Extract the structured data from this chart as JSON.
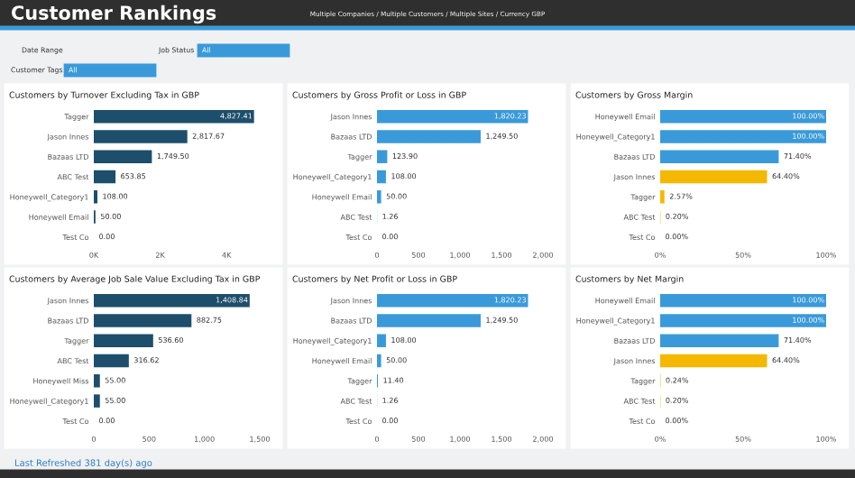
{
  "chart_data": [
    {
      "type": "other",
      "title": "Customer Rankings",
      "subtitle": "Multiple Companies / Multiple Customers / Multiple Sites / Currency GBP",
      "annotations": [
        "Date Range",
        "Job Status",
        "All",
        "Customer Tags",
        "All",
        "Last Refreshed 381 day(s) ago"
      ]
    },
    {
      "type": "bar",
      "orientation": "horizontal",
      "title": "Customers by Turnover Excluding Tax in GBP",
      "categories": [
        "Tagger",
        "Jason Innes",
        "Bazaas LTD",
        "ABC Test",
        "Honeywell_Category1",
        "Honeywell Email",
        "Test Co"
      ],
      "values": [
        4827.41,
        2817.67,
        1749.5,
        653.85,
        108.0,
        50.0,
        0.0
      ],
      "value_labels": [
        "4,827.41",
        "2,817.67",
        "1,749.50",
        "653.85",
        "108.00",
        "50.00",
        "0.00"
      ],
      "color": "#1d4e6b",
      "xlim": [
        0,
        5000
      ],
      "xticks": [
        {
          "value": 0,
          "label": "0K"
        },
        {
          "value": 2000,
          "label": "2K"
        },
        {
          "value": 4000,
          "label": "4K"
        }
      ]
    },
    {
      "type": "bar",
      "orientation": "horizontal",
      "title": "Customers by Gross Profit or Loss in GBP",
      "categories": [
        "Jason Innes",
        "Bazaas LTD",
        "Tagger",
        "Honeywell_Category1",
        "Honeywell Email",
        "ABC Test",
        "Test Co"
      ],
      "values": [
        1820.23,
        1249.5,
        123.9,
        108.0,
        50.0,
        1.26,
        0.0
      ],
      "value_labels": [
        "1,820.23",
        "1,249.50",
        "123.90",
        "108.00",
        "50.00",
        "1.26",
        "0.00"
      ],
      "color": "#3a9ad9",
      "xlim": [
        0,
        2000
      ],
      "xticks": [
        0,
        500,
        {
          "value": 1000,
          "label": "1,000"
        },
        {
          "value": 1500,
          "label": "1,500"
        },
        {
          "value": 2000,
          "label": "2,000"
        }
      ]
    },
    {
      "type": "bar",
      "orientation": "horizontal",
      "title": "Customers by Gross Margin",
      "categories": [
        "Honeywell Email",
        "Honeywell_Category1",
        "Bazaas LTD",
        "Jason Innes",
        "Tagger",
        "ABC Test",
        "Test Co"
      ],
      "values": [
        100.0,
        100.0,
        71.4,
        64.4,
        2.57,
        0.2,
        0.0
      ],
      "value_labels": [
        "100.00%",
        "100.00%",
        "71.40%",
        "64.40%",
        "2.57%",
        "0.20%",
        "0.00%"
      ],
      "colors": [
        "#3a9ad9",
        "#3a9ad9",
        "#3a9ad9",
        "#f5b800",
        "#f5b800",
        "#f5b800",
        "#f5b800"
      ],
      "xlim": [
        0,
        100
      ],
      "xticks": [
        {
          "value": 0,
          "label": "0%"
        },
        {
          "value": 50,
          "label": "50%"
        },
        {
          "value": 100,
          "label": "100%"
        }
      ]
    },
    {
      "type": "bar",
      "orientation": "horizontal",
      "title": "Customers by Average Job Sale Value Excluding Tax in GBP",
      "categories": [
        "Jason Innes",
        "Bazaas LTD",
        "Tagger",
        "ABC Test",
        "Honeywell Miss",
        "Honeywell_Category1",
        "Test Co"
      ],
      "values": [
        1408.84,
        882.75,
        536.6,
        316.62,
        55.0,
        55.0,
        0.0
      ],
      "value_labels": [
        "1,408.84",
        "882.75",
        "536.60",
        "316.62",
        "55.00",
        "55.00",
        "0.00"
      ],
      "color": "#1d4e6b",
      "xlim": [
        0,
        1500
      ],
      "xticks": [
        0,
        500,
        {
          "value": 1000,
          "label": "1,000"
        },
        {
          "value": 1500,
          "label": "1,500"
        }
      ]
    },
    {
      "type": "bar",
      "orientation": "horizontal",
      "title": "Customers by Net Profit or Loss in GBP",
      "categories": [
        "Jason Innes",
        "Bazaas LTD",
        "Honeywell_Category1",
        "Honeywell Email",
        "Tagger",
        "ABC Test",
        "Test Co"
      ],
      "values": [
        1820.23,
        1249.5,
        108.0,
        50.0,
        11.4,
        1.26,
        0.0
      ],
      "value_labels": [
        "1,820.23",
        "1,249.50",
        "108.00",
        "50.00",
        "11.40",
        "1.26",
        "0.00"
      ],
      "color": "#3a9ad9",
      "xlim": [
        0,
        2000
      ],
      "xticks": [
        0,
        500,
        {
          "value": 1000,
          "label": "1,000"
        },
        {
          "value": 1500,
          "label": "1,500"
        },
        {
          "value": 2000,
          "label": "2,000"
        }
      ]
    },
    {
      "type": "bar",
      "orientation": "horizontal",
      "title": "Customers by Net Margin",
      "categories": [
        "Honeywell Email",
        "Honeywell_Category1",
        "Bazaas LTD",
        "Jason Innes",
        "Tagger",
        "ABC Test",
        "Test Co"
      ],
      "values": [
        100.0,
        100.0,
        71.4,
        64.4,
        0.24,
        0.2,
        0.0
      ],
      "value_labels": [
        "100.00%",
        "100.00%",
        "71.40%",
        "64.40%",
        "0.24%",
        "0.20%",
        "0.00%"
      ],
      "colors": [
        "#3a9ad9",
        "#3a9ad9",
        "#3a9ad9",
        "#f5b800",
        "#f5b800",
        "#f5b800",
        "#f5b800"
      ],
      "xlim": [
        0,
        100
      ],
      "xticks": [
        {
          "value": 0,
          "label": "0%"
        },
        {
          "value": 50,
          "label": "50%"
        },
        {
          "value": 100,
          "label": "100%"
        }
      ]
    }
  ]
}
